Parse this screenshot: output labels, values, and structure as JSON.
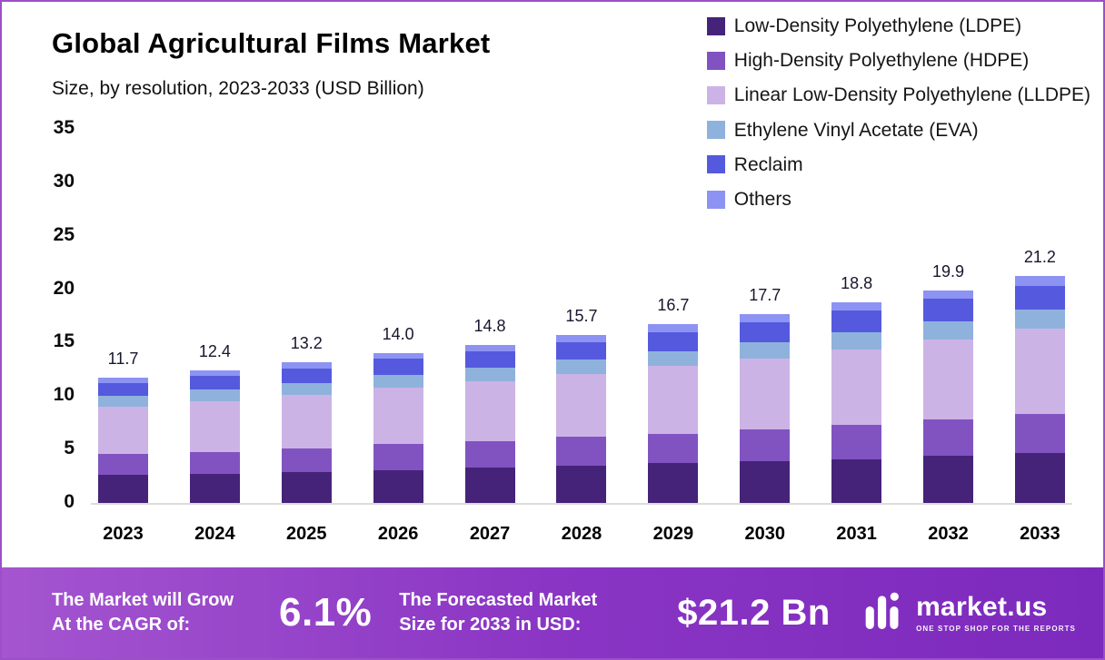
{
  "header": {
    "title": "Global Agricultural Films Market",
    "subtitle": "Size, by resolution, 2023-2033 (USD Billion)"
  },
  "chart_data": {
    "type": "bar",
    "stacked": true,
    "title": "Global Agricultural Films Market",
    "subtitle": "Size, by resolution, 2023-2033 (USD Billion)",
    "unit": "USD Billion",
    "categories": [
      "2023",
      "2024",
      "2025",
      "2026",
      "2027",
      "2028",
      "2029",
      "2030",
      "2031",
      "2032",
      "2033"
    ],
    "total_labels": [
      "11.7",
      "12.4",
      "13.2",
      "14.0",
      "14.8",
      "15.7",
      "16.7",
      "17.7",
      "18.8",
      "19.9",
      "21.2"
    ],
    "series": [
      {
        "name": "Low-Density Polyethylene (LDPE)",
        "color": "#452379",
        "values": [
          2.6,
          2.7,
          2.9,
          3.1,
          3.3,
          3.5,
          3.7,
          3.9,
          4.1,
          4.4,
          4.7
        ]
      },
      {
        "name": "High-Density Polyethylene (HDPE)",
        "color": "#8153c1",
        "values": [
          2.0,
          2.1,
          2.2,
          2.4,
          2.5,
          2.7,
          2.8,
          3.0,
          3.2,
          3.4,
          3.6
        ]
      },
      {
        "name": "Linear Low-Density Polyethylene (LLDPE)",
        "color": "#ccb3e6",
        "values": [
          4.4,
          4.7,
          5.0,
          5.3,
          5.6,
          5.9,
          6.3,
          6.6,
          7.1,
          7.5,
          8.0
        ]
      },
      {
        "name": "Ethylene Vinyl Acetate (EVA)",
        "color": "#8fb2dc",
        "values": [
          1.0,
          1.1,
          1.1,
          1.2,
          1.3,
          1.3,
          1.4,
          1.5,
          1.6,
          1.7,
          1.8
        ]
      },
      {
        "name": "Reclaim",
        "color": "#5559de",
        "values": [
          1.2,
          1.3,
          1.4,
          1.5,
          1.5,
          1.6,
          1.8,
          1.9,
          2.0,
          2.1,
          2.2
        ]
      },
      {
        "name": "Others",
        "color": "#8d93f2",
        "values": [
          0.5,
          0.5,
          0.6,
          0.5,
          0.6,
          0.7,
          0.7,
          0.8,
          0.8,
          0.8,
          0.9
        ]
      }
    ],
    "ylim": [
      0,
      35
    ],
    "yticks": [
      0,
      5,
      10,
      15,
      20,
      25,
      30,
      35
    ],
    "grid": false,
    "legend_position": "top-right"
  },
  "banner": {
    "cagr_label": "The Market will Grow\nAt the CAGR of:",
    "cagr_value": "6.1%",
    "forecast_label": "The Forecasted Market\nSize for 2033 in USD:",
    "forecast_value": "$21.2 Bn",
    "brand": "market.us",
    "tagline": "One Stop Shop For The Reports",
    "background": "#8a35c4"
  }
}
